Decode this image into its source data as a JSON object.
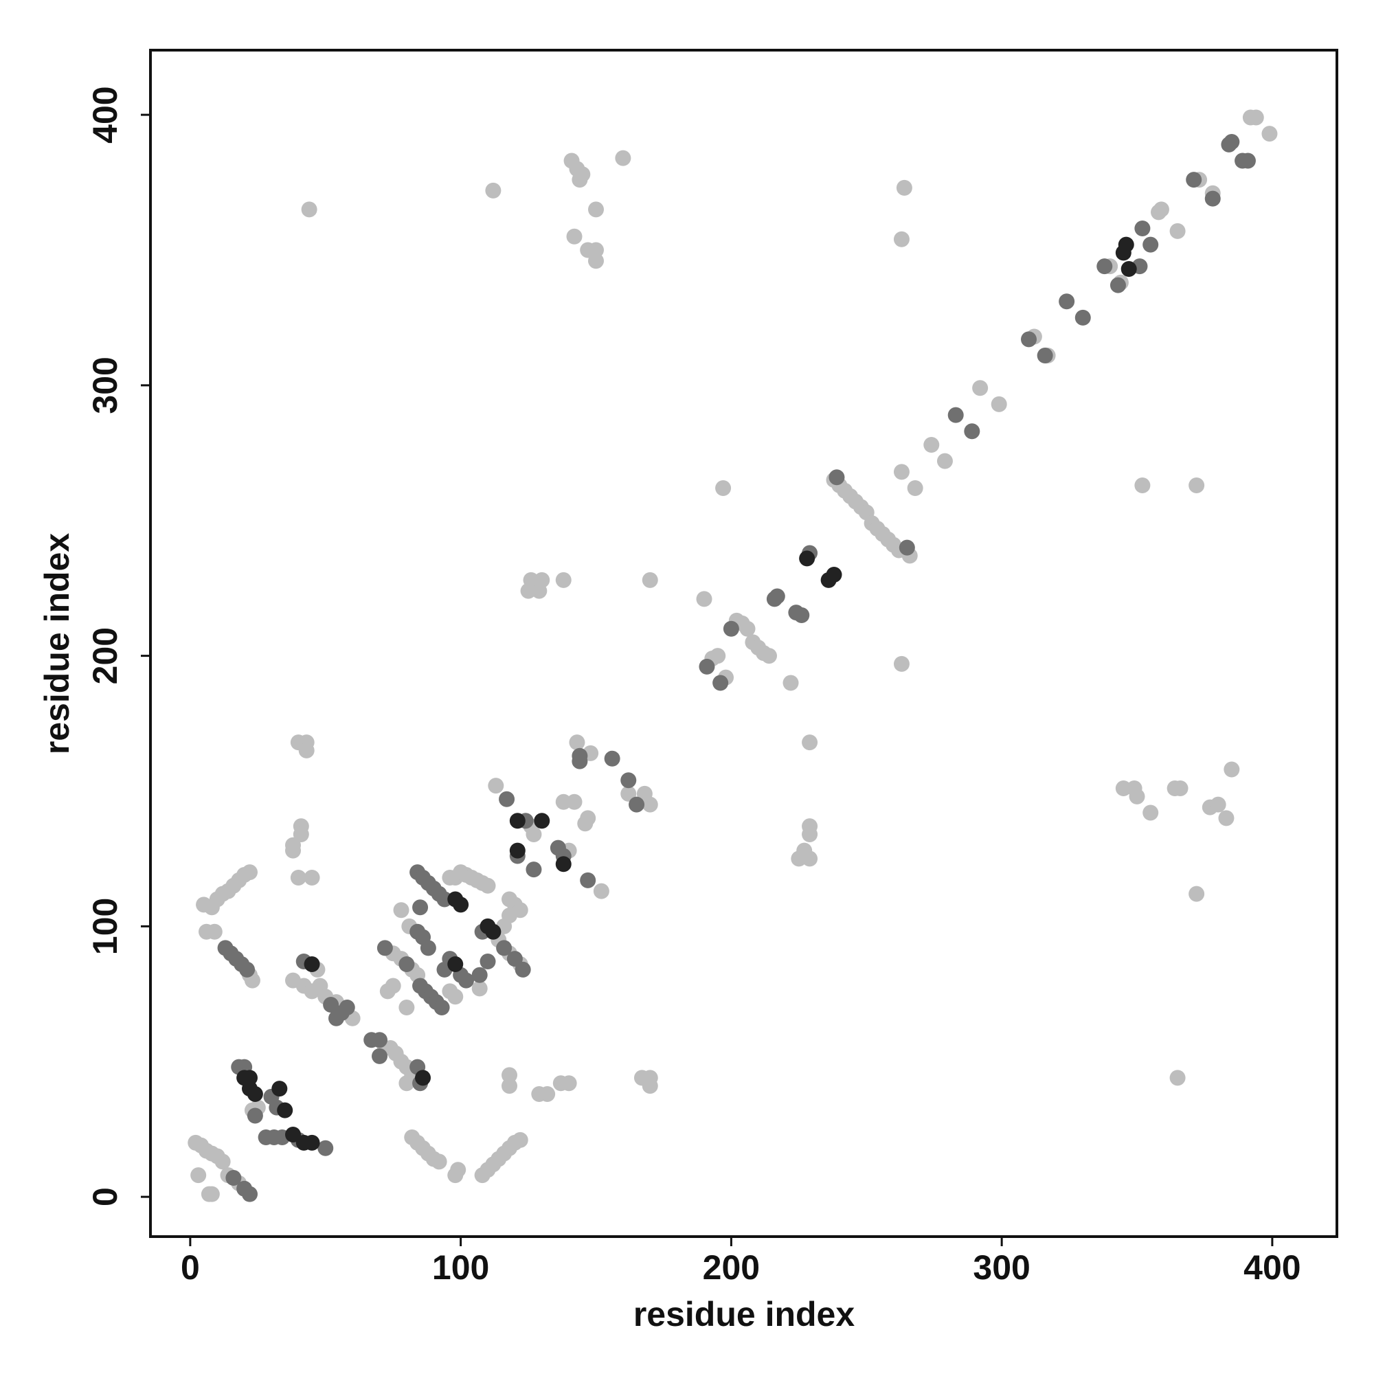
{
  "chart_data": {
    "type": "scatter",
    "xlabel": "residue index",
    "ylabel": "residue index",
    "xlim": [
      -14.7,
      423.9
    ],
    "ylim": [
      -14.7,
      423.9
    ],
    "xticks": [
      0,
      100,
      200,
      300,
      400
    ],
    "yticks": [
      0,
      100,
      200,
      300,
      400
    ],
    "grid": false,
    "series": [
      {
        "color": "#bdbdbd",
        "x": [
          392,
          394,
          399,
          378,
          373,
          365,
          358,
          359,
          340,
          344,
          317,
          312,
          299,
          292,
          279,
          274,
          268,
          263,
          266,
          238,
          240,
          242,
          244,
          246,
          248,
          250,
          252,
          254,
          256,
          258,
          260,
          262,
          197,
          190,
          222,
          202,
          204,
          206,
          208,
          210,
          212,
          214,
          198,
          193,
          195,
          263,
          229,
          229,
          229,
          227,
          229,
          225,
          263,
          264,
          44,
          112,
          141,
          143,
          145,
          144,
          160,
          142,
          147,
          150,
          150,
          150,
          126,
          130,
          138,
          129,
          125,
          170,
          143,
          148,
          162,
          170,
          168,
          147,
          146,
          138,
          142,
          113,
          126,
          127,
          140,
          152,
          352,
          372,
          345,
          349,
          350,
          355,
          364,
          366,
          377,
          380,
          383,
          385,
          372,
          365,
          40,
          43,
          43,
          41,
          41,
          38,
          38,
          40,
          45,
          5,
          8,
          10,
          12,
          14,
          16,
          18,
          20,
          22,
          6,
          9,
          22,
          23,
          38,
          47,
          42,
          45,
          48,
          50,
          54,
          60,
          72,
          74,
          76,
          78,
          80,
          82,
          75,
          78,
          82,
          84,
          81,
          78,
          96,
          98,
          100,
          102,
          104,
          106,
          108,
          110,
          96,
          98,
          107,
          114,
          118,
          122,
          118,
          120,
          122,
          118,
          116,
          75,
          73,
          80,
          80,
          2,
          4,
          6,
          8,
          10,
          12,
          3,
          7,
          8,
          14,
          18,
          23,
          25,
          82,
          84,
          86,
          88,
          90,
          92,
          98,
          99,
          108,
          110,
          112,
          114,
          116,
          118,
          120,
          122,
          118,
          118,
          129,
          132,
          137,
          140,
          167,
          170,
          170
        ],
        "y": [
          399,
          399,
          393,
          371,
          376,
          357,
          364,
          365,
          344,
          338,
          311,
          318,
          293,
          299,
          272,
          278,
          262,
          268,
          237,
          265,
          263,
          261,
          259,
          257,
          255,
          253,
          249,
          247,
          245,
          243,
          241,
          239,
          262,
          221,
          190,
          213,
          212,
          210,
          205,
          203,
          201,
          200,
          192,
          199,
          200,
          197,
          168,
          137,
          134,
          128,
          125,
          125,
          354,
          373,
          365,
          372,
          383,
          380,
          378,
          376,
          384,
          355,
          350,
          350,
          346,
          365,
          228,
          228,
          228,
          224,
          224,
          228,
          168,
          164,
          149,
          145,
          149,
          140,
          138,
          146,
          146,
          152,
          137,
          134,
          128,
          113,
          263,
          263,
          151,
          151,
          148,
          142,
          151,
          151,
          144,
          145,
          140,
          158,
          112,
          44,
          168,
          168,
          165,
          137,
          134,
          130,
          128,
          118,
          118,
          108,
          107,
          110,
          112,
          113,
          115,
          117,
          119,
          120,
          98,
          98,
          82,
          80,
          80,
          84,
          78,
          76,
          78,
          74,
          72,
          66,
          55,
          55,
          53,
          50,
          48,
          45,
          90,
          88,
          84,
          82,
          100,
          106,
          118,
          118,
          120,
          119,
          118,
          117,
          116,
          115,
          76,
          74,
          77,
          95,
          90,
          86,
          110,
          108,
          106,
          104,
          100,
          78,
          76,
          70,
          42,
          20,
          19,
          17,
          16,
          15,
          13,
          8,
          1,
          1,
          8,
          5,
          32,
          33,
          22,
          20,
          18,
          16,
          14,
          13,
          8,
          10,
          8,
          10,
          12,
          14,
          16,
          18,
          20,
          21,
          45,
          41,
          38,
          38,
          42,
          42,
          44,
          44,
          41
        ]
      },
      {
        "color": "#707070",
        "x": [
          385,
          384,
          389,
          391,
          378,
          371,
          355,
          352,
          351,
          343,
          338,
          330,
          324,
          316,
          310,
          289,
          283,
          265,
          239,
          229,
          226,
          224,
          217,
          216,
          200,
          196,
          191,
          144,
          144,
          156,
          162,
          165,
          117,
          124,
          121,
          127,
          136,
          138,
          147,
          13,
          15,
          17,
          19,
          21,
          42,
          52,
          56,
          58,
          54,
          67,
          70,
          70,
          72,
          80,
          84,
          86,
          88,
          85,
          84,
          86,
          88,
          90,
          92,
          94,
          85,
          87,
          89,
          91,
          93,
          94,
          96,
          100,
          102,
          107,
          110,
          108,
          116,
          120,
          123,
          84,
          85,
          16,
          20,
          22,
          18,
          20,
          24,
          30,
          32,
          28,
          31,
          34,
          40,
          50
        ],
        "y": [
          390,
          389,
          383,
          383,
          369,
          376,
          352,
          358,
          344,
          337,
          344,
          325,
          331,
          311,
          317,
          283,
          289,
          240,
          266,
          238,
          215,
          216,
          222,
          221,
          210,
          190,
          196,
          163,
          161,
          162,
          154,
          145,
          147,
          139,
          126,
          121,
          129,
          126,
          117,
          92,
          90,
          88,
          86,
          84,
          87,
          71,
          68,
          70,
          66,
          58,
          58,
          52,
          92,
          86,
          98,
          96,
          92,
          107,
          120,
          118,
          116,
          114,
          112,
          110,
          78,
          76,
          74,
          72,
          70,
          84,
          88,
          82,
          80,
          82,
          87,
          98,
          92,
          88,
          84,
          48,
          42,
          7,
          3,
          1,
          48,
          48,
          30,
          37,
          33,
          22,
          22,
          22,
          21,
          18
        ]
      },
      {
        "color": "#222222",
        "x": [
          346,
          345,
          347,
          238,
          236,
          228,
          121,
          130,
          121,
          138,
          45,
          98,
          100,
          98,
          110,
          112,
          86,
          20,
          22,
          22,
          24,
          33,
          35,
          38,
          42,
          45
        ],
        "y": [
          352,
          349,
          343,
          230,
          228,
          236,
          139,
          139,
          128,
          123,
          86,
          110,
          108,
          86,
          100,
          98,
          44,
          44,
          44,
          40,
          38,
          40,
          32,
          23,
          20,
          20
        ]
      }
    ]
  }
}
